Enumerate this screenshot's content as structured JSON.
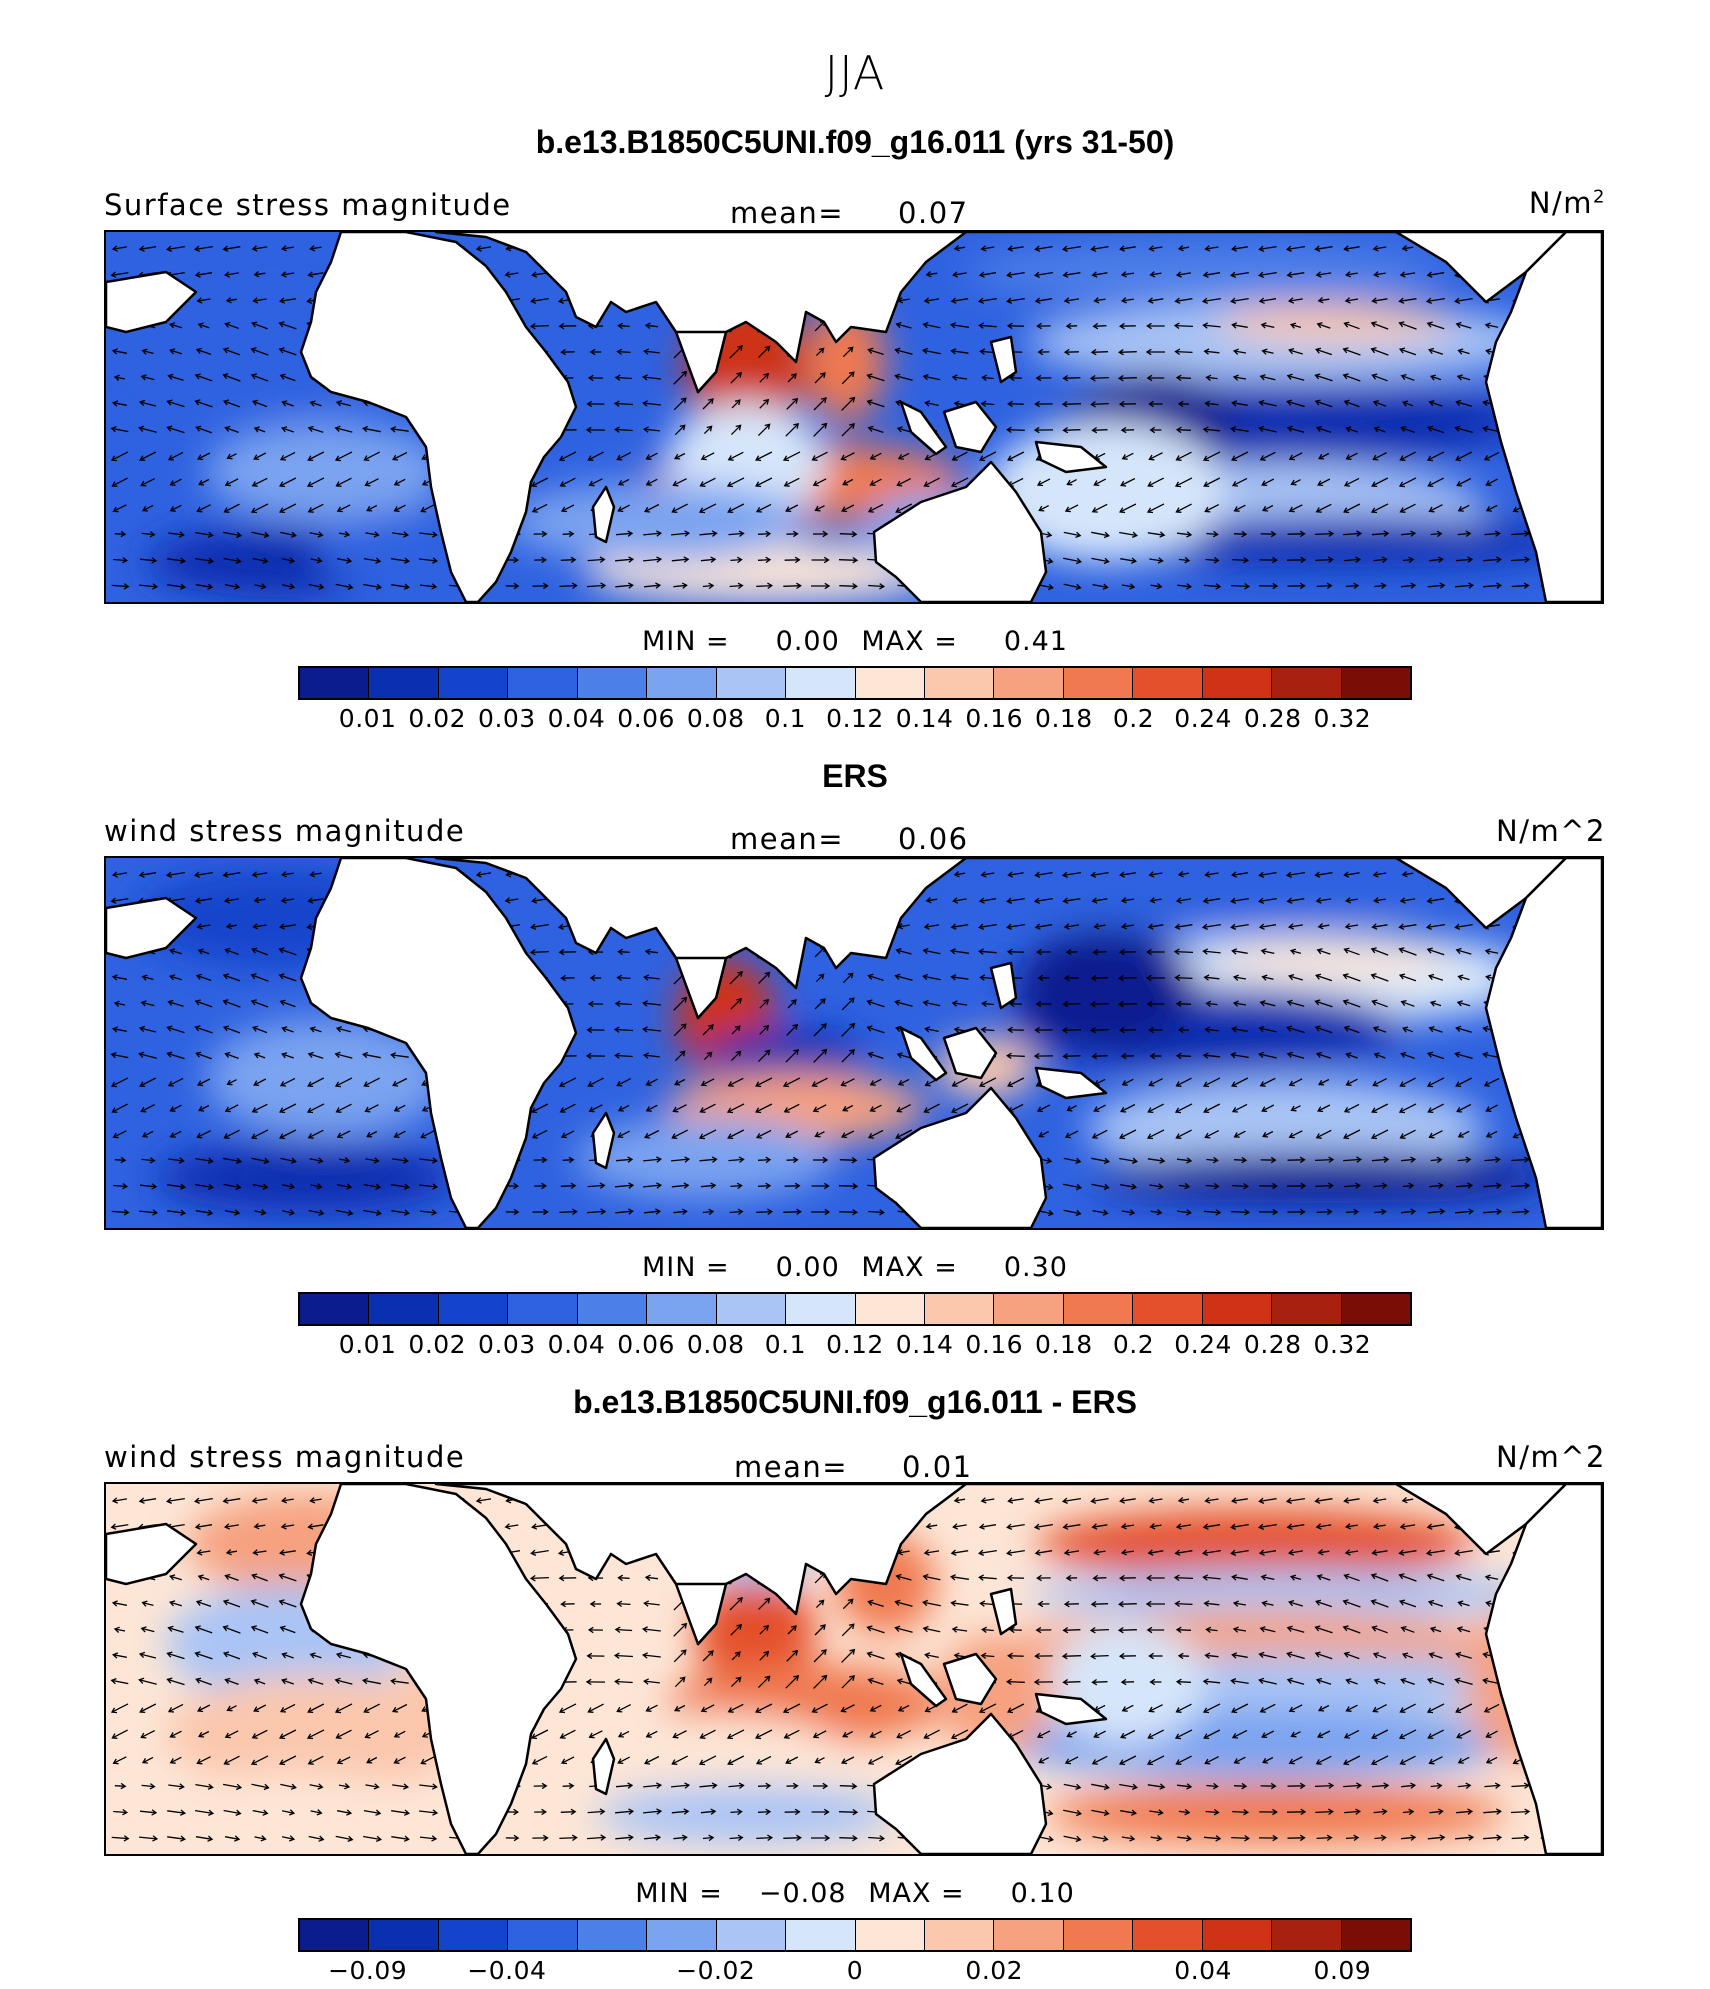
{
  "figure_title": "JJA",
  "colors": {
    "palette": [
      "#0b1c8f",
      "#0a2fb0",
      "#1444cc",
      "#2f62e0",
      "#4d7fe8",
      "#7aa3f0",
      "#a9c4f5",
      "#d6e6fa",
      "#fde6d6",
      "#fbc7ad",
      "#f6a17f",
      "#f07950",
      "#e4502c",
      "#cf3214",
      "#a8200e",
      "#7a0d04"
    ],
    "ocean": "#5b86e6",
    "land": "#ffffff",
    "coast": "#000000"
  },
  "chart_data": [
    {
      "type": "heatmap",
      "title": "b.e13.B1850C5UNI.f09_g16.011 (yrs 31-50)",
      "field_label": "Surface stress magnitude",
      "mean_label": "mean=",
      "mean_value": "0.07",
      "units_text": "N/m",
      "units_sup": "2",
      "min_label": "MIN =",
      "min_value": "0.00",
      "max_label": "MAX =",
      "max_value": "0.41",
      "colorbar_ticks": [
        "0.01",
        "0.02",
        "0.03",
        "0.04",
        "0.06",
        "0.08",
        "0.1",
        "0.12",
        "0.14",
        "0.16",
        "0.18",
        "0.2",
        "0.24",
        "0.28",
        "0.32"
      ]
    },
    {
      "type": "heatmap",
      "title": "ERS",
      "field_label": "wind stress magnitude",
      "mean_label": "mean=",
      "mean_value": "0.06",
      "units_text": "N/m^2",
      "min_label": "MIN =",
      "min_value": "0.00",
      "max_label": "MAX =",
      "max_value": "0.30",
      "colorbar_ticks": [
        "0.01",
        "0.02",
        "0.03",
        "0.04",
        "0.06",
        "0.08",
        "0.1",
        "0.12",
        "0.14",
        "0.16",
        "0.18",
        "0.2",
        "0.24",
        "0.28",
        "0.32"
      ]
    },
    {
      "type": "heatmap",
      "title": "b.e13.B1850C5UNI.f09_g16.011 - ERS",
      "field_label": "wind stress magnitude",
      "mean_label": "mean=",
      "mean_value": "0.01",
      "units_text": "N/m^2",
      "min_label": "MIN =",
      "min_value": "−0.08",
      "max_label": "MAX =",
      "max_value": "0.10",
      "colorbar_ticks": [
        "−0.09",
        "−0.04",
        "−0.02",
        "0",
        "0.02",
        "0.04",
        "0.09"
      ]
    }
  ]
}
